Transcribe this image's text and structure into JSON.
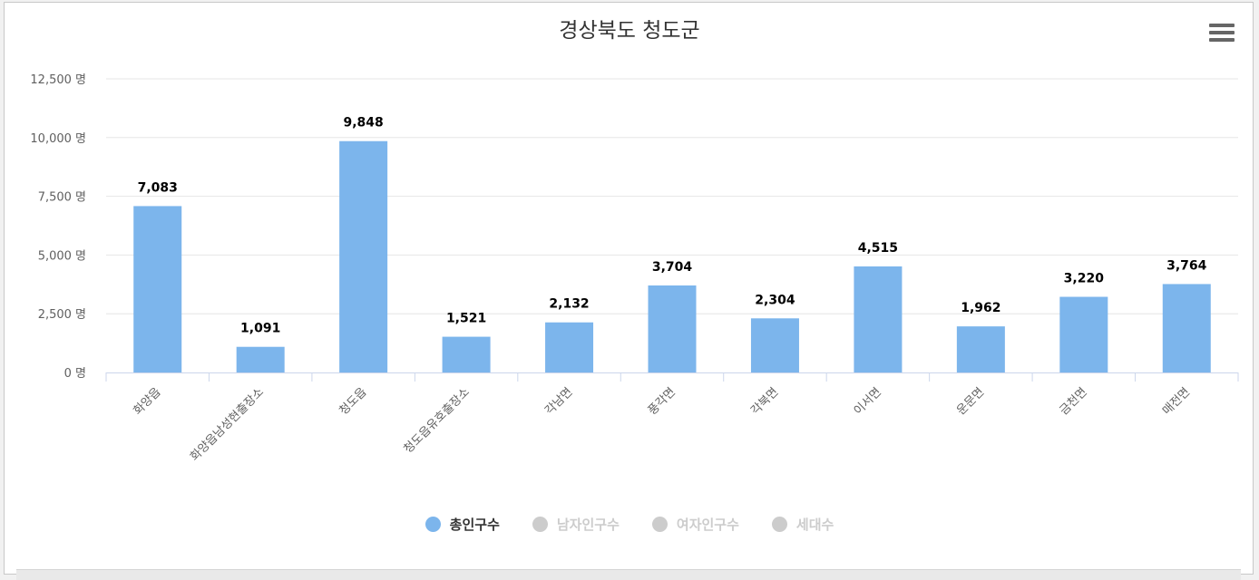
{
  "chart_data": {
    "type": "bar",
    "title": "경상북도 청도군",
    "categories": [
      "화양읍",
      "화양읍남성현출장소",
      "청도읍",
      "청도읍유호출장소",
      "각남면",
      "풍각면",
      "각북면",
      "이서면",
      "운문면",
      "금천면",
      "매전면"
    ],
    "series": [
      {
        "name": "총인구수",
        "values": [
          7083,
          1091,
          9848,
          1521,
          2132,
          3704,
          2304,
          4515,
          1962,
          3220,
          3764
        ],
        "visible": true
      }
    ],
    "data_labels": [
      "7,083",
      "1,091",
      "9,848",
      "1,521",
      "2,132",
      "3,704",
      "2,304",
      "4,515",
      "1,962",
      "3,220",
      "3,764"
    ],
    "y_ticks": [
      0,
      2500,
      5000,
      7500,
      10000,
      12500
    ],
    "y_tick_labels": [
      "0 명",
      "2,500 명",
      "5,000 명",
      "7,500 명",
      "10,000 명",
      "12,500 명"
    ],
    "ylim": [
      0,
      12500
    ],
    "grid": true,
    "legend_position": "bottom",
    "colors": {
      "bar": "#7cb5ec",
      "hidden": "#cccccc"
    }
  },
  "legend": [
    {
      "label": "총인구수",
      "active": true,
      "color": "#7cb5ec"
    },
    {
      "label": "남자인구수",
      "active": false,
      "color": "#cccccc"
    },
    {
      "label": "여자인구수",
      "active": false,
      "color": "#cccccc"
    },
    {
      "label": "세대수",
      "active": false,
      "color": "#cccccc"
    }
  ],
  "menu_icon": "hamburger-menu-icon"
}
